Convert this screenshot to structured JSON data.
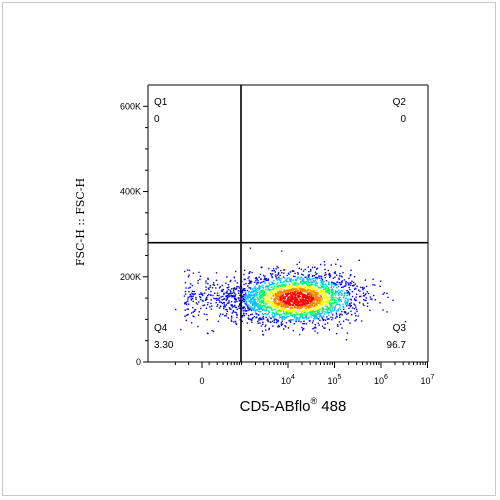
{
  "chart_data": {
    "type": "scatter",
    "subtype": "flow-cytometry-density-dot-plot",
    "xlabel": "CD5-ABflo",
    "xlabel_superscript": "®",
    "xlabel_suffix": " 488",
    "ylabel": "FSC-H :: FSC-H",
    "x_scale": "biexponential (log above ~10^3)",
    "ylim": [
      0,
      650000
    ],
    "y_ticks": [
      {
        "value": 0,
        "label": "0"
      },
      {
        "value": 200000,
        "label": "200K"
      },
      {
        "value": 400000,
        "label": "400K"
      },
      {
        "value": 600000,
        "label": "600K"
      }
    ],
    "x_ticks": [
      {
        "value": 0,
        "base": "0",
        "exp": ""
      },
      {
        "value": 10000,
        "base": "10",
        "exp": "4"
      },
      {
        "value": 100000,
        "base": "10",
        "exp": "5"
      },
      {
        "value": 1000000,
        "base": "10",
        "exp": "6"
      },
      {
        "value": 10000000,
        "base": "10",
        "exp": "7"
      }
    ],
    "gates": {
      "x_threshold": 750,
      "y_threshold": 280000
    },
    "quadrants": [
      {
        "name": "Q1",
        "value": "0",
        "position": "top-left"
      },
      {
        "name": "Q2",
        "value": "0",
        "position": "top-right"
      },
      {
        "name": "Q3",
        "value": "96.7",
        "position": "bottom-right"
      },
      {
        "name": "Q4",
        "value": "3.30",
        "position": "bottom-left"
      }
    ],
    "population": {
      "center_x": 15000,
      "center_y": 150000,
      "x_range": [
        -1500,
        300000
      ],
      "y_range": [
        60000,
        220000
      ],
      "density_colors": [
        "#0000ff",
        "#00bfff",
        "#00ff66",
        "#ffff00",
        "#ff8000",
        "#ff0000"
      ]
    },
    "grid": false,
    "legend": "none"
  }
}
